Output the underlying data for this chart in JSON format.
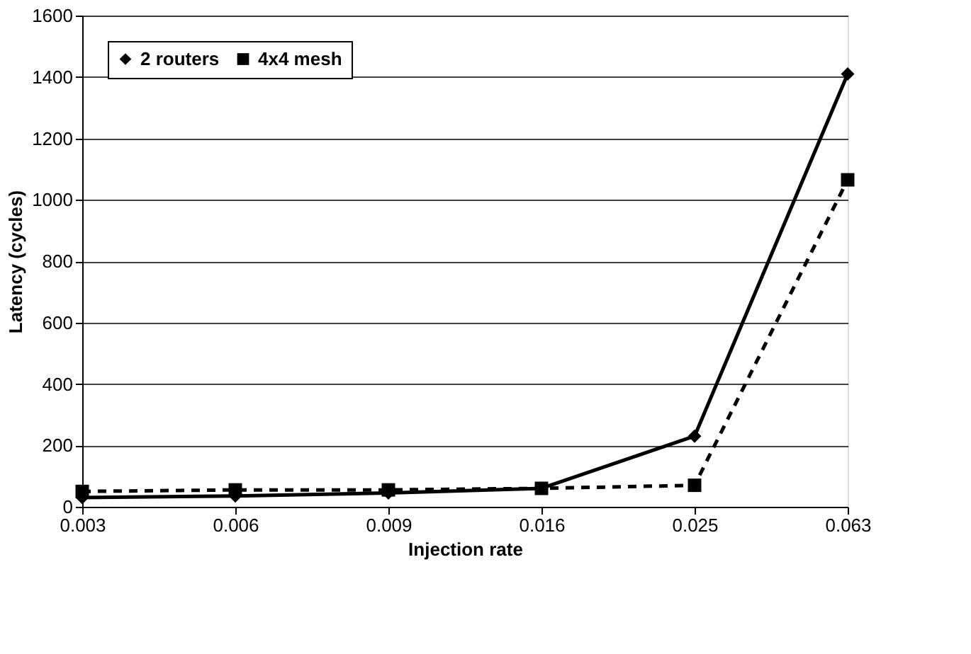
{
  "chart_data": {
    "type": "line",
    "xlabel": "Injection rate",
    "ylabel": "Latency (cycles)",
    "categories": [
      "0.003",
      "0.006",
      "0.009",
      "0.016",
      "0.025",
      "0.063"
    ],
    "series": [
      {
        "name": "2 routers",
        "color": "#000000",
        "marker": "diamond",
        "line_style": "solid",
        "values": [
          30,
          35,
          45,
          60,
          230,
          1410
        ]
      },
      {
        "name": "4x4 mesh",
        "color": "#000000",
        "marker": "square",
        "line_style": "dashed",
        "values": [
          50,
          55,
          55,
          60,
          70,
          1065
        ]
      }
    ],
    "ylim": [
      0,
      1600
    ],
    "yticks": [
      0,
      200,
      400,
      600,
      800,
      1000,
      1200,
      1400,
      1600
    ],
    "grid": "y",
    "legend": "top left"
  }
}
